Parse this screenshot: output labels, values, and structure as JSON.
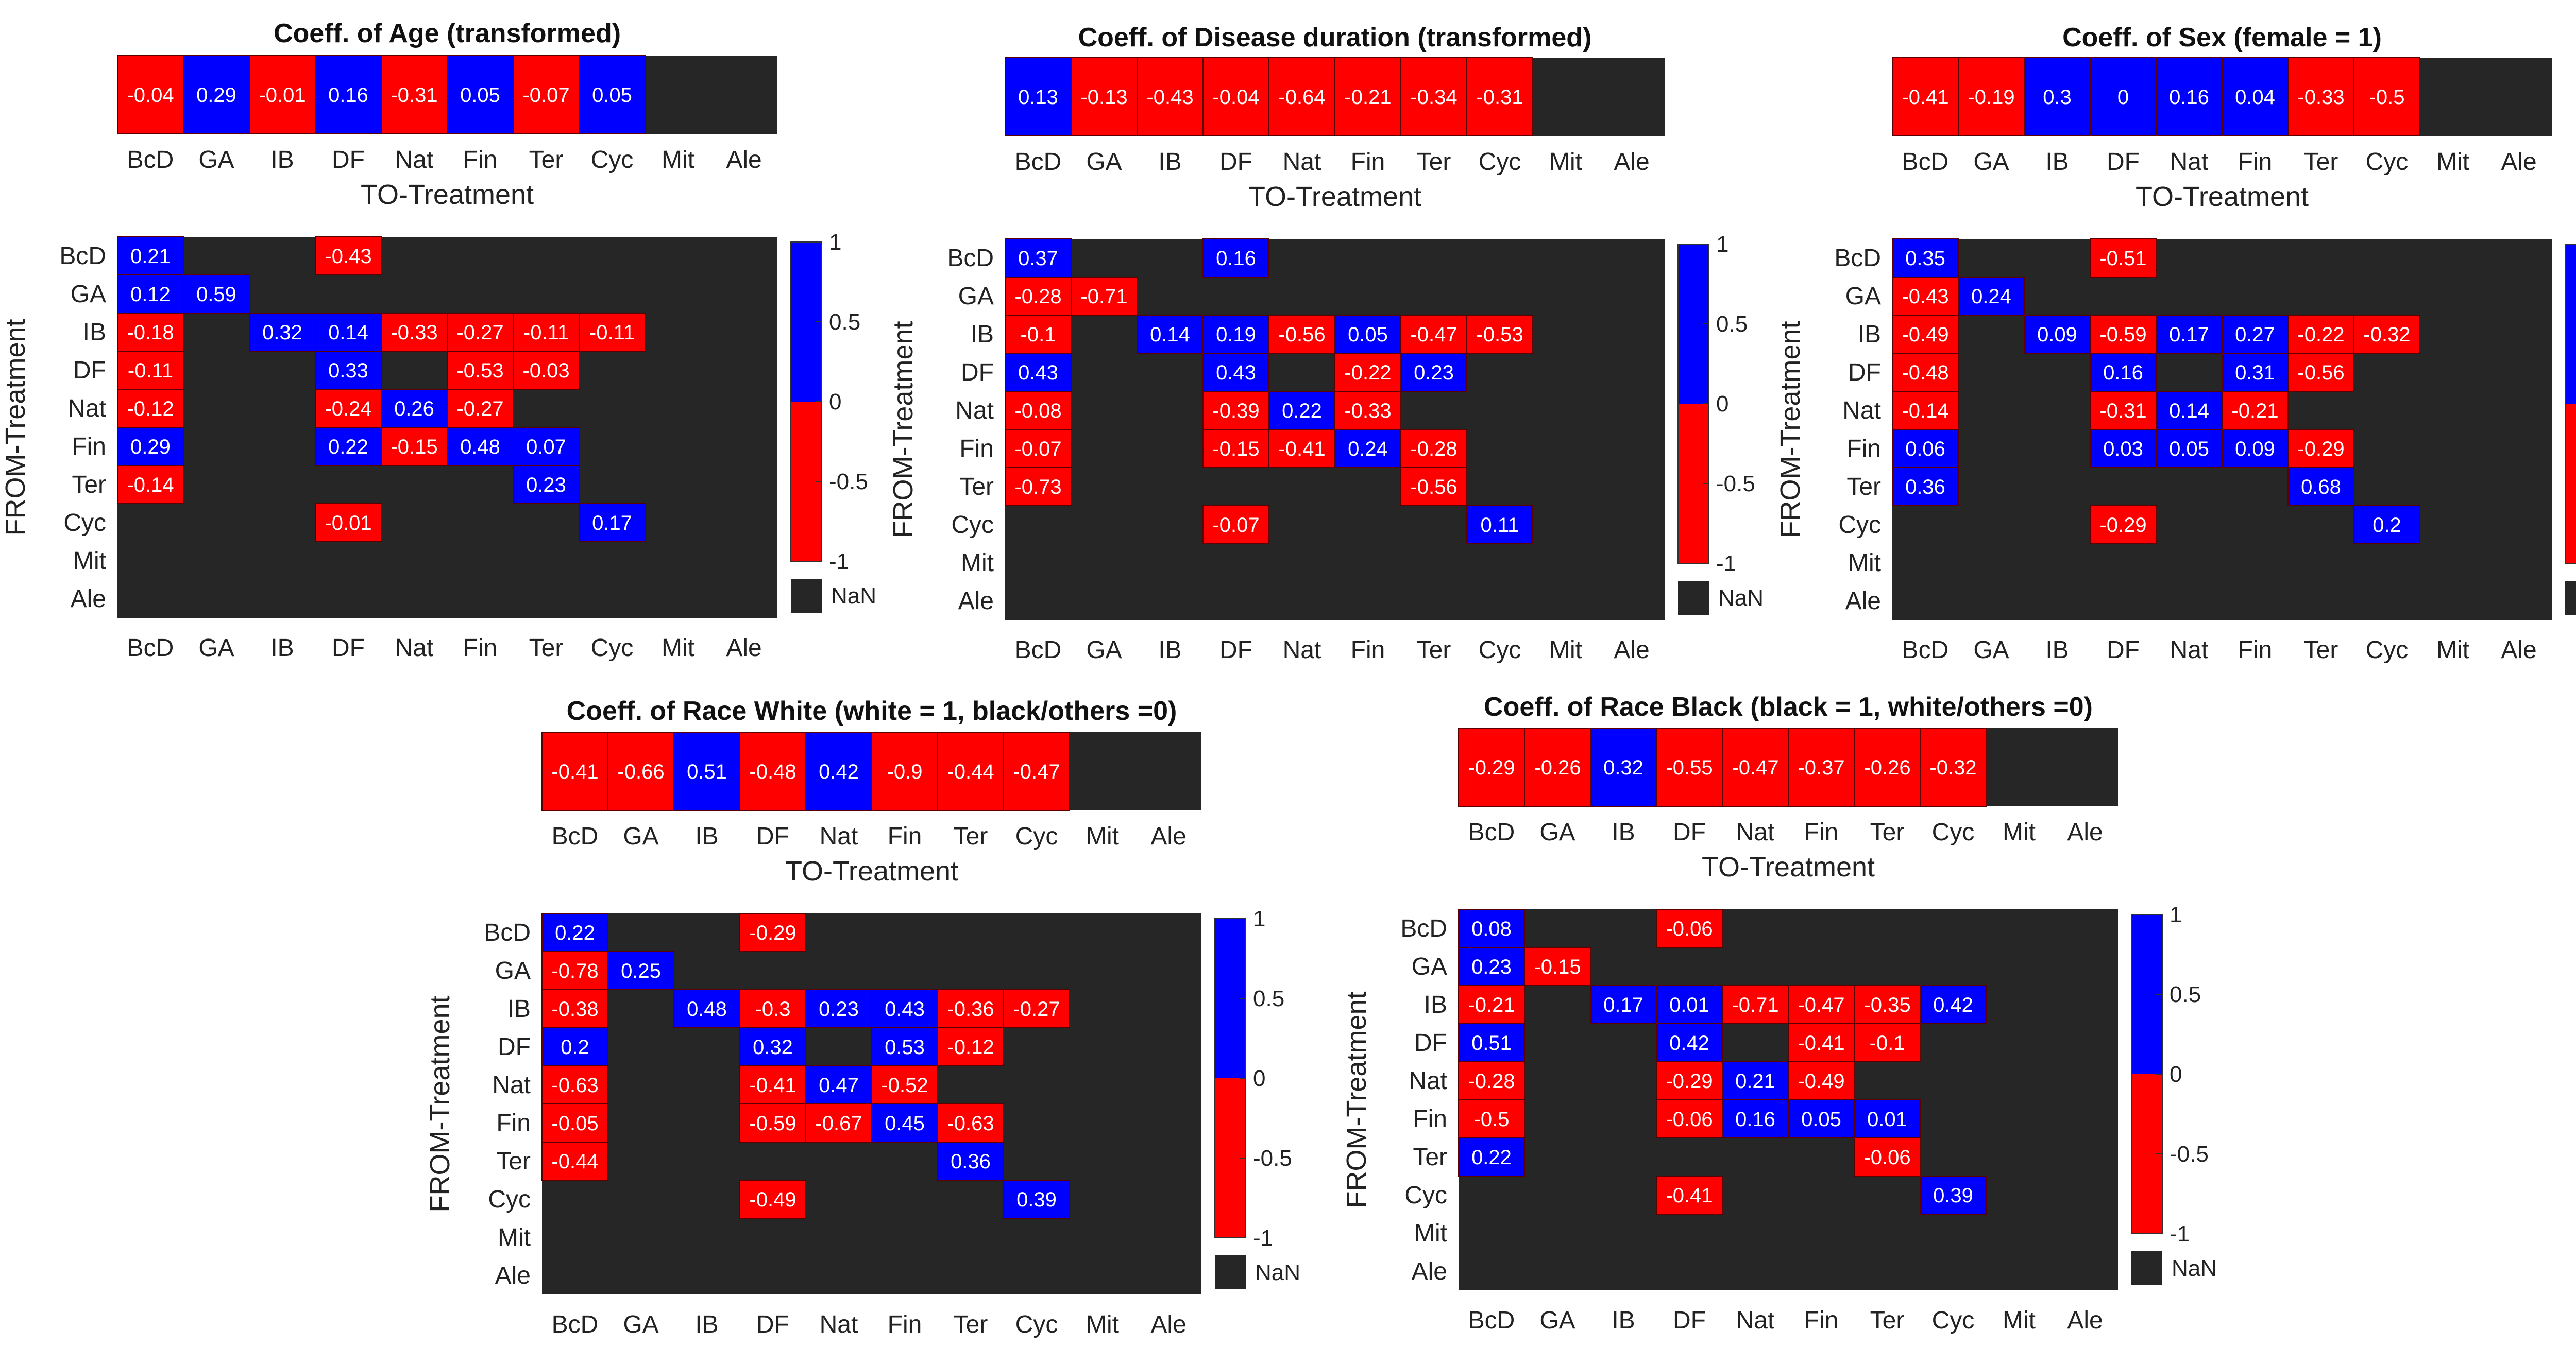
{
  "colors": {
    "positive": "#0000ff",
    "negative": "#ff0000",
    "nan": "#262626"
  },
  "labels": {
    "to_axis": "TO-Treatment",
    "from_axis": "FROM-Treatment",
    "nan": "NaN",
    "colorbar_ticks": [
      "1",
      "0.5",
      "0",
      "-0.5",
      "-1"
    ]
  },
  "chart_data": [
    {
      "type": "heatmap",
      "title": "Coeff. of Age (transformed)",
      "treatments": [
        "BcD",
        "GA",
        "IB",
        "DF",
        "Nat",
        "Fin",
        "Ter",
        "Cyc",
        "Mit",
        "Ale"
      ],
      "xlabel": "TO-Treatment",
      "ylabel": "FROM-Treatment",
      "colorbar": {
        "range": [
          -1,
          1
        ],
        "positive_color": "blue",
        "negative_color": "red",
        "nan_color": "black"
      },
      "to_row": [
        "-0.04",
        "0.29",
        "-0.01",
        "0.16",
        "-0.31",
        "0.05",
        "-0.07",
        "0.05",
        null,
        null
      ],
      "matrix": [
        [
          "0.21",
          null,
          null,
          "-0.43",
          null,
          null,
          null,
          null,
          null,
          null
        ],
        [
          "0.12",
          "0.59",
          null,
          null,
          null,
          null,
          null,
          null,
          null,
          null
        ],
        [
          "-0.18",
          null,
          "0.32",
          "0.14",
          "-0.33",
          "-0.27",
          "-0.11",
          "-0.11",
          null,
          null
        ],
        [
          "-0.11",
          null,
          null,
          "0.33",
          null,
          "-0.53",
          "-0.03",
          null,
          null,
          null
        ],
        [
          "-0.12",
          null,
          null,
          "-0.24",
          "0.26",
          "-0.27",
          null,
          null,
          null,
          null
        ],
        [
          "0.29",
          null,
          null,
          "0.22",
          "-0.15",
          "0.48",
          "0.07",
          null,
          null,
          null
        ],
        [
          "-0.14",
          null,
          null,
          null,
          null,
          null,
          "0.23",
          null,
          null,
          null
        ],
        [
          null,
          null,
          null,
          "-0.01",
          null,
          null,
          null,
          "0.17",
          null,
          null
        ],
        [
          null,
          null,
          null,
          null,
          null,
          null,
          null,
          null,
          null,
          null
        ],
        [
          null,
          null,
          null,
          null,
          null,
          null,
          null,
          null,
          null,
          null
        ]
      ]
    },
    {
      "type": "heatmap",
      "title": "Coeff. of Disease duration (transformed)",
      "treatments": [
        "BcD",
        "GA",
        "IB",
        "DF",
        "Nat",
        "Fin",
        "Ter",
        "Cyc",
        "Mit",
        "Ale"
      ],
      "xlabel": "TO-Treatment",
      "ylabel": "FROM-Treatment",
      "colorbar": {
        "range": [
          -1,
          1
        ],
        "positive_color": "blue",
        "negative_color": "red",
        "nan_color": "black"
      },
      "to_row": [
        "0.13",
        "-0.13",
        "-0.43",
        "-0.04",
        "-0.64",
        "-0.21",
        "-0.34",
        "-0.31",
        null,
        null
      ],
      "matrix": [
        [
          "0.37",
          null,
          null,
          "0.16",
          null,
          null,
          null,
          null,
          null,
          null
        ],
        [
          "-0.28",
          "-0.71",
          null,
          null,
          null,
          null,
          null,
          null,
          null,
          null
        ],
        [
          "-0.1",
          null,
          "0.14",
          "0.19",
          "-0.56",
          "0.05",
          "-0.47",
          "-0.53",
          null,
          null
        ],
        [
          "0.43",
          null,
          null,
          "0.43",
          null,
          "-0.22",
          "0.23",
          null,
          null,
          null
        ],
        [
          "-0.08",
          null,
          null,
          "-0.39",
          "0.22",
          "-0.33",
          null,
          null,
          null,
          null
        ],
        [
          "-0.07",
          null,
          null,
          "-0.15",
          "-0.41",
          "0.24",
          "-0.28",
          null,
          null,
          null
        ],
        [
          "-0.73",
          null,
          null,
          null,
          null,
          null,
          "-0.56",
          null,
          null,
          null
        ],
        [
          null,
          null,
          null,
          "-0.07",
          null,
          null,
          null,
          "0.11",
          null,
          null
        ],
        [
          null,
          null,
          null,
          null,
          null,
          null,
          null,
          null,
          null,
          null
        ],
        [
          null,
          null,
          null,
          null,
          null,
          null,
          null,
          null,
          null,
          null
        ]
      ]
    },
    {
      "type": "heatmap",
      "title": "Coeff. of Sex (female = 1)",
      "treatments": [
        "BcD",
        "GA",
        "IB",
        "DF",
        "Nat",
        "Fin",
        "Ter",
        "Cyc",
        "Mit",
        "Ale"
      ],
      "xlabel": "TO-Treatment",
      "ylabel": "FROM-Treatment",
      "colorbar": {
        "range": [
          -1,
          1
        ],
        "positive_color": "blue",
        "negative_color": "red",
        "nan_color": "black"
      },
      "to_row": [
        "-0.41",
        "-0.19",
        "0.3",
        "0",
        "0.16",
        "0.04",
        "-0.33",
        "-0.5",
        null,
        null
      ],
      "matrix": [
        [
          "0.35",
          null,
          null,
          "-0.51",
          null,
          null,
          null,
          null,
          null,
          null
        ],
        [
          "-0.43",
          "0.24",
          null,
          null,
          null,
          null,
          null,
          null,
          null,
          null
        ],
        [
          "-0.49",
          null,
          "0.09",
          "-0.59",
          "0.17",
          "0.27",
          "-0.22",
          "-0.32",
          null,
          null
        ],
        [
          "-0.48",
          null,
          null,
          "0.16",
          null,
          "0.31",
          "-0.56",
          null,
          null,
          null
        ],
        [
          "-0.14",
          null,
          null,
          "-0.31",
          "0.14",
          "-0.21",
          null,
          null,
          null,
          null
        ],
        [
          "0.06",
          null,
          null,
          "0.03",
          "0.05",
          "0.09",
          "-0.29",
          null,
          null,
          null
        ],
        [
          "0.36",
          null,
          null,
          null,
          null,
          null,
          "0.68",
          null,
          null,
          null
        ],
        [
          null,
          null,
          null,
          "-0.29",
          null,
          null,
          null,
          "0.2",
          null,
          null
        ],
        [
          null,
          null,
          null,
          null,
          null,
          null,
          null,
          null,
          null,
          null
        ],
        [
          null,
          null,
          null,
          null,
          null,
          null,
          null,
          null,
          null,
          null
        ]
      ]
    },
    {
      "type": "heatmap",
      "title": "Coeff. of Race White (white = 1, black/others =0)",
      "treatments": [
        "BcD",
        "GA",
        "IB",
        "DF",
        "Nat",
        "Fin",
        "Ter",
        "Cyc",
        "Mit",
        "Ale"
      ],
      "xlabel": "TO-Treatment",
      "ylabel": "FROM-Treatment",
      "colorbar": {
        "range": [
          -1,
          1
        ],
        "positive_color": "blue",
        "negative_color": "red",
        "nan_color": "black"
      },
      "to_row": [
        "-0.41",
        "-0.66",
        "0.51",
        "-0.48",
        "0.42",
        "-0.9",
        "-0.44",
        "-0.47",
        null,
        null
      ],
      "matrix": [
        [
          "0.22",
          null,
          null,
          "-0.29",
          null,
          null,
          null,
          null,
          null,
          null
        ],
        [
          "-0.78",
          "0.25",
          null,
          null,
          null,
          null,
          null,
          null,
          null,
          null
        ],
        [
          "-0.38",
          null,
          "0.48",
          "-0.3",
          "0.23",
          "0.43",
          "-0.36",
          "-0.27",
          null,
          null
        ],
        [
          "0.2",
          null,
          null,
          "0.32",
          null,
          "0.53",
          "-0.12",
          null,
          null,
          null
        ],
        [
          "-0.63",
          null,
          null,
          "-0.41",
          "0.47",
          "-0.52",
          null,
          null,
          null,
          null
        ],
        [
          "-0.05",
          null,
          null,
          "-0.59",
          "-0.67",
          "0.45",
          "-0.63",
          null,
          null,
          null
        ],
        [
          "-0.44",
          null,
          null,
          null,
          null,
          null,
          "0.36",
          null,
          null,
          null
        ],
        [
          null,
          null,
          null,
          "-0.49",
          null,
          null,
          null,
          "0.39",
          null,
          null
        ],
        [
          null,
          null,
          null,
          null,
          null,
          null,
          null,
          null,
          null,
          null
        ],
        [
          null,
          null,
          null,
          null,
          null,
          null,
          null,
          null,
          null,
          null
        ]
      ]
    },
    {
      "type": "heatmap",
      "title": "Coeff. of Race Black (black = 1, white/others =0)",
      "treatments": [
        "BcD",
        "GA",
        "IB",
        "DF",
        "Nat",
        "Fin",
        "Ter",
        "Cyc",
        "Mit",
        "Ale"
      ],
      "xlabel": "TO-Treatment",
      "ylabel": "FROM-Treatment",
      "colorbar": {
        "range": [
          -1,
          1
        ],
        "positive_color": "blue",
        "negative_color": "red",
        "nan_color": "black"
      },
      "to_row": [
        "-0.29",
        "-0.26",
        "0.32",
        "-0.55",
        "-0.47",
        "-0.37",
        "-0.26",
        "-0.32",
        null,
        null
      ],
      "matrix": [
        [
          "0.08",
          null,
          null,
          "-0.06",
          null,
          null,
          null,
          null,
          null,
          null
        ],
        [
          "0.23",
          "-0.15",
          null,
          null,
          null,
          null,
          null,
          null,
          null,
          null
        ],
        [
          "-0.21",
          null,
          "0.17",
          "0.01",
          "-0.71",
          "-0.47",
          "-0.35",
          "0.42",
          null,
          null
        ],
        [
          "0.51",
          null,
          null,
          "0.42",
          null,
          "-0.41",
          "-0.1",
          null,
          null,
          null
        ],
        [
          "-0.28",
          null,
          null,
          "-0.29",
          "0.21",
          "-0.49",
          null,
          null,
          null,
          null
        ],
        [
          "-0.5",
          null,
          null,
          "-0.06",
          "0.16",
          "0.05",
          "0.01",
          null,
          null,
          null
        ],
        [
          "0.22",
          null,
          null,
          null,
          null,
          null,
          "-0.06",
          null,
          null,
          null
        ],
        [
          null,
          null,
          null,
          "-0.41",
          null,
          null,
          null,
          "0.39",
          null,
          null
        ],
        [
          null,
          null,
          null,
          null,
          null,
          null,
          null,
          null,
          null,
          null
        ],
        [
          null,
          null,
          null,
          null,
          null,
          null,
          null,
          null,
          null,
          null
        ]
      ]
    }
  ]
}
